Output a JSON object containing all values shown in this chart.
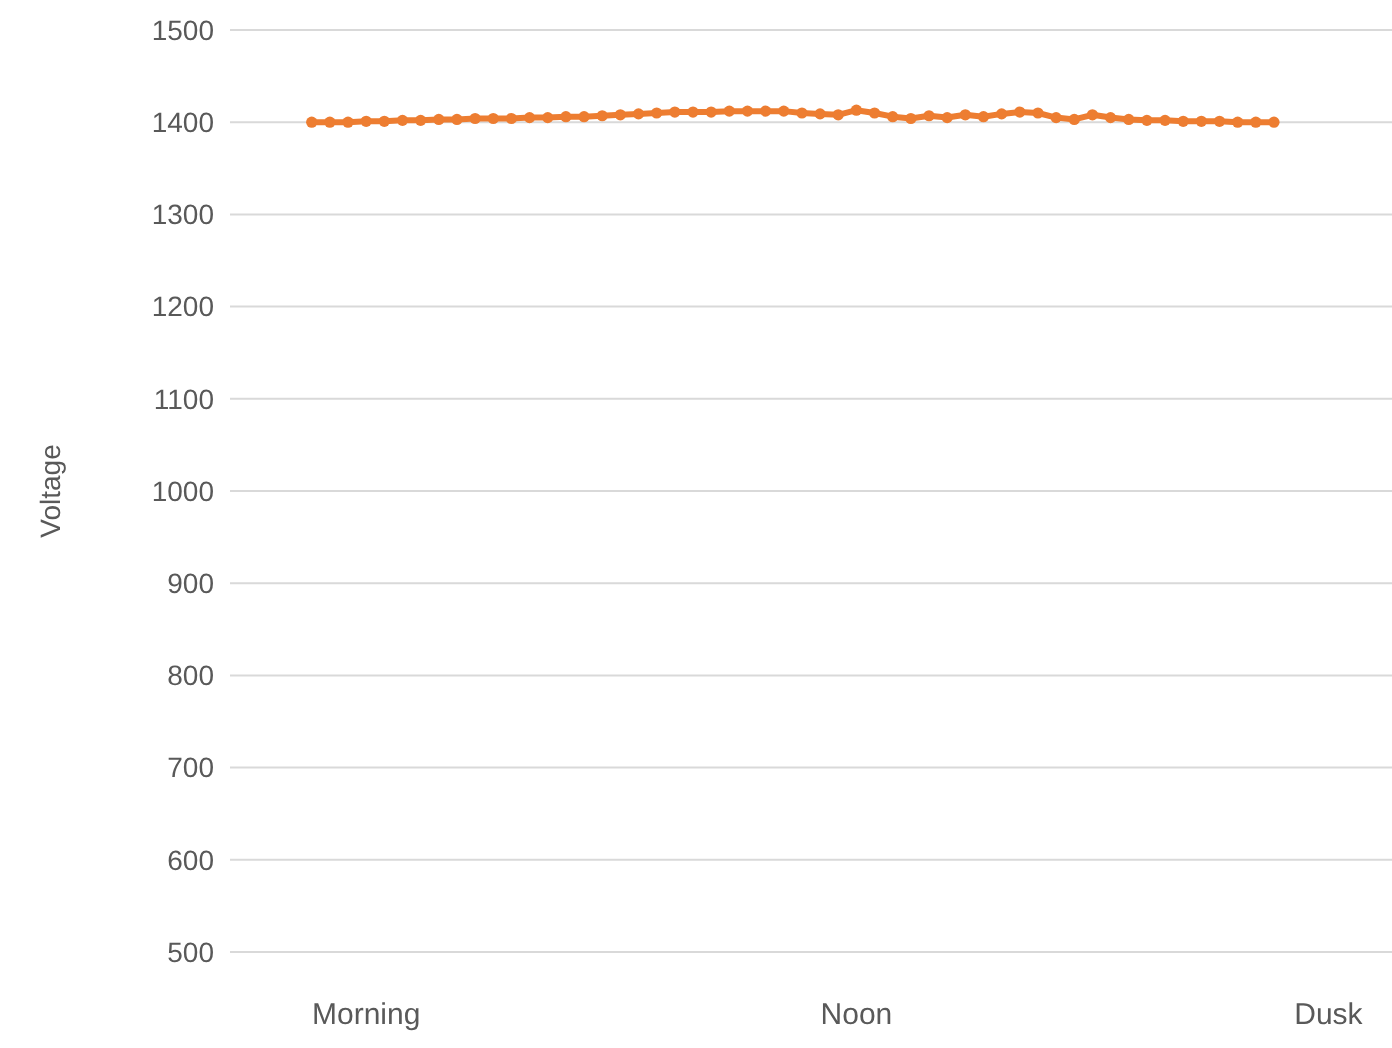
{
  "chart_data": {
    "type": "line",
    "ylabel": "Voltage",
    "categories": [
      null,
      null,
      null,
      null,
      null,
      null,
      null,
      "Morning",
      null,
      null,
      null,
      null,
      null,
      null,
      null,
      null,
      null,
      null,
      null,
      null,
      null,
      null,
      null,
      null,
      null,
      null,
      null,
      null,
      null,
      null,
      null,
      null,
      null,
      null,
      "Noon",
      null,
      null,
      null,
      null,
      null,
      null,
      null,
      null,
      null,
      null,
      null,
      null,
      null,
      null,
      null,
      null,
      null,
      null,
      null,
      null,
      null,
      null,
      null,
      null,
      null,
      "Dusk",
      null,
      null,
      null
    ],
    "series": [
      {
        "color": "#ed7d31",
        "values": [
          null,
          null,
          null,
          null,
          1400,
          1400,
          1400,
          1401,
          1401,
          1402,
          1402,
          1403,
          1403,
          1404,
          1404,
          1404,
          1405,
          1405,
          1406,
          1406,
          1407,
          1408,
          1409,
          1410,
          1411,
          1411,
          1411,
          1412,
          1412,
          1412,
          1412,
          1410,
          1409,
          1408,
          1413,
          1410,
          1406,
          1404,
          1407,
          1405,
          1408,
          1406,
          1409,
          1411,
          1410,
          1405,
          1403,
          1408,
          1405,
          1403,
          1402,
          1402,
          1401,
          1401,
          1401,
          1400,
          1400,
          1400,
          null,
          null,
          null,
          null,
          null,
          null
        ]
      }
    ],
    "ylim": [
      500,
      1500
    ],
    "yticks": [
      500,
      600,
      700,
      800,
      900,
      1000,
      1100,
      1200,
      1300,
      1400,
      1500
    ],
    "grid": "y",
    "marker": "circle",
    "line_style": "solid"
  }
}
